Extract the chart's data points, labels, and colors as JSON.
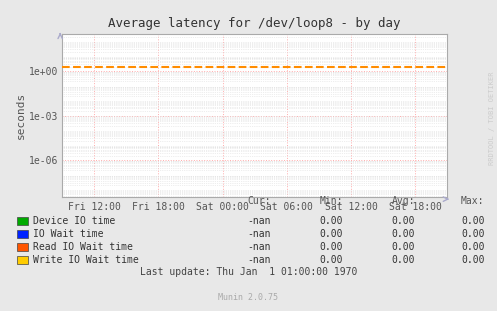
{
  "title": "Average latency for /dev/loop8 - by day",
  "ylabel": "seconds",
  "fig_facecolor": "#e8e8e8",
  "plot_facecolor": "#ffffff",
  "x_ticks_labels": [
    "Fri 12:00",
    "Fri 18:00",
    "Sat 00:00",
    "Sat 06:00",
    "Sat 12:00",
    "Sat 18:00"
  ],
  "x_ticks_positions": [
    0.0833,
    0.25,
    0.4167,
    0.5833,
    0.75,
    0.9167
  ],
  "dashed_line_y": 2.0,
  "dashed_line_color": "#ff8c00",
  "yticks": [
    1e-06,
    0.001,
    1.0
  ],
  "ytick_labels": [
    "1e-06",
    "1e-03",
    "1e+00"
  ],
  "ylim_min": 3e-09,
  "ylim_max": 300.0,
  "grid_major_color": "#ffaaaa",
  "grid_minor_color": "#dddddd",
  "vgrid_color": "#ffaaaa",
  "spine_color": "#aaaaaa",
  "arrow_color": "#aaaacc",
  "watermark": "RRDTOOL / TOBI OETIKER",
  "legend_entries": [
    {
      "label": "Device IO time",
      "color": "#00aa00"
    },
    {
      "label": "IO Wait time",
      "color": "#0022ff"
    },
    {
      "label": "Read IO Wait time",
      "color": "#ff5500"
    },
    {
      "label": "Write IO Wait time",
      "color": "#ffcc00"
    }
  ],
  "table_header": [
    "Cur:",
    "Min:",
    "Avg:",
    "Max:"
  ],
  "table_rows": [
    [
      "-nan",
      "0.00",
      "0.00",
      "0.00"
    ],
    [
      "-nan",
      "0.00",
      "0.00",
      "0.00"
    ],
    [
      "-nan",
      "0.00",
      "0.00",
      "0.00"
    ],
    [
      "-nan",
      "0.00",
      "0.00",
      "0.00"
    ]
  ],
  "footer": "Last update: Thu Jan  1 01:00:00 1970",
  "munin_version": "Munin 2.0.75"
}
